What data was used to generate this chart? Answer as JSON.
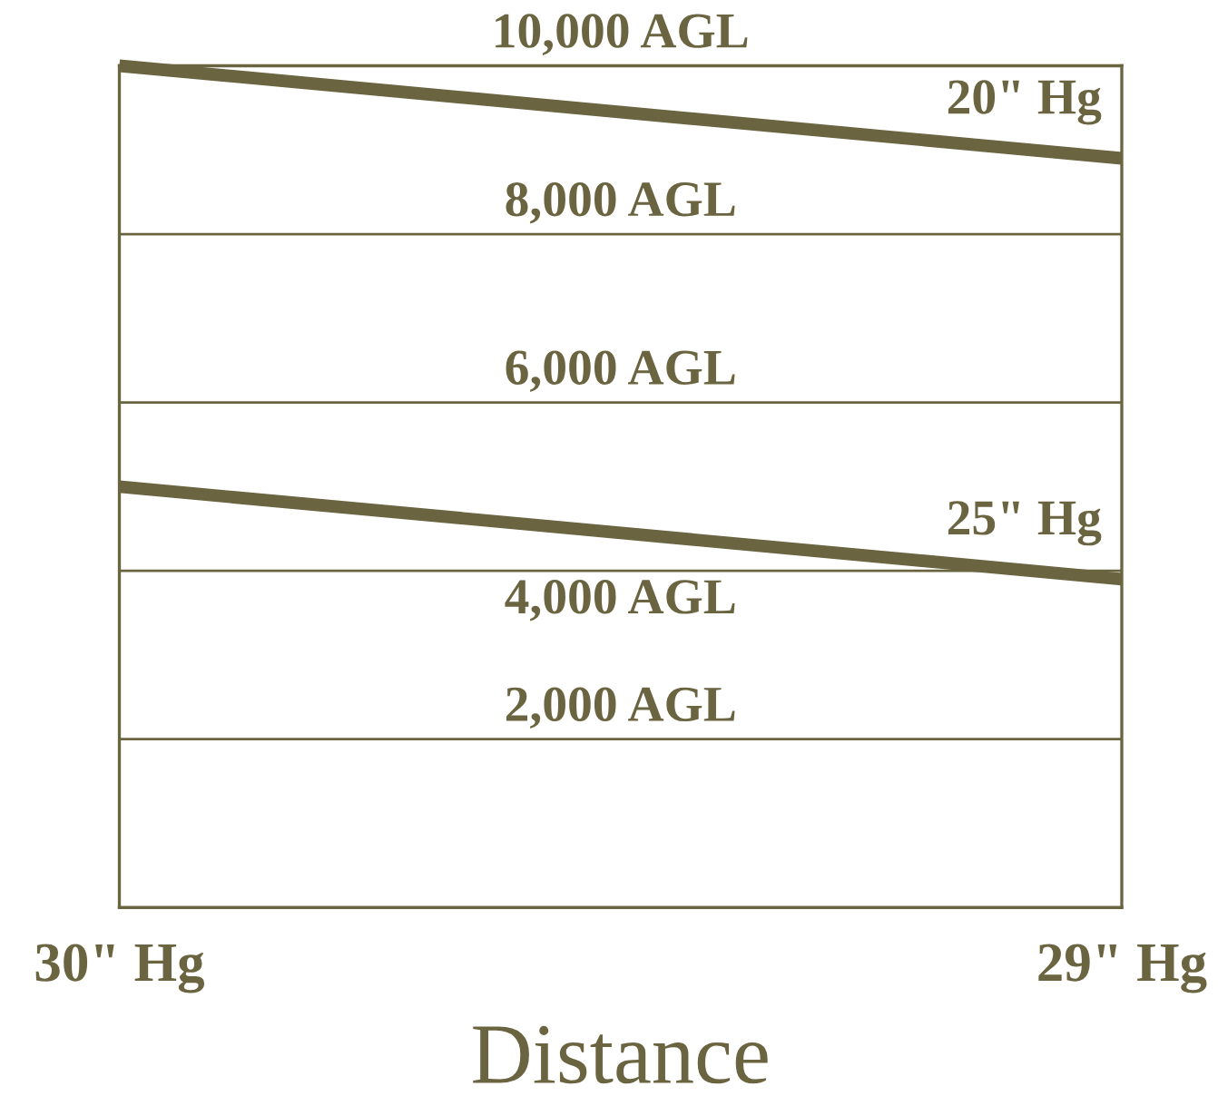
{
  "chart_data": {
    "type": "line",
    "xlabel": "Distance",
    "categories": [
      "30\" Hg",
      "29\" Hg"
    ],
    "series": [
      {
        "name": "20\" Hg",
        "color": "#6b6440",
        "values": [
          10000,
          8900
        ]
      },
      {
        "name": "25\" Hg",
        "color": "#6b6440",
        "values": [
          5000,
          3900
        ]
      }
    ],
    "ylim": [
      0,
      10000
    ],
    "tick_labels": "x",
    "marker": "none",
    "line_style": "solid",
    "ref_lines": [
      {
        "axis": "y",
        "value": 2000,
        "label": "2,000 AGL",
        "color": "#6b6440"
      },
      {
        "axis": "y",
        "value": 4000,
        "label": "4,000 AGL",
        "color": "#6b6440"
      },
      {
        "axis": "y",
        "value": 6000,
        "label": "6,000 AGL",
        "color": "#6b6440"
      },
      {
        "axis": "y",
        "value": 8000,
        "label": "8,000 AGL",
        "color": "#6b6440"
      },
      {
        "axis": "y",
        "value": 10000,
        "label": "10,000 AGL",
        "color": "#6b6440"
      }
    ]
  }
}
